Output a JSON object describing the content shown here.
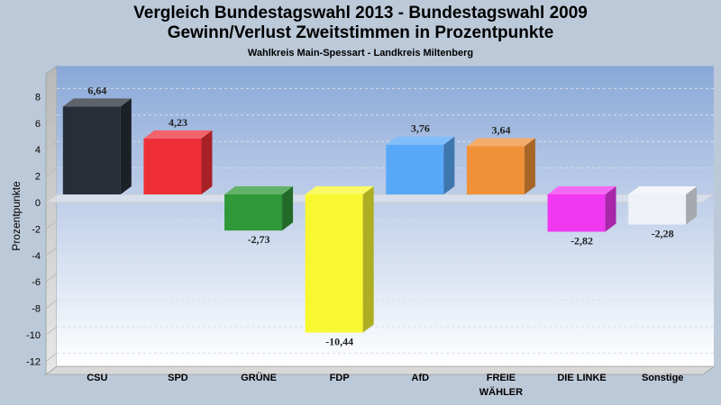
{
  "header": {
    "title_line1": "Vergleich Bundestagswahl 2013 - Bundestagswahl 2009",
    "title_line2": "Gewinn/Verlust Zweitstimmen in Prozentpunkte",
    "subtitle": "Wahlkreis Main-Spessart - Landkreis Miltenberg"
  },
  "chart_data": {
    "type": "bar",
    "title": "Vergleich Bundestagswahl 2013 - Bundestagswahl 2009 / Gewinn/Verlust Zweitstimmen in Prozentpunkte",
    "subtitle": "Wahlkreis Main-Spessart - Landkreis Miltenberg",
    "xlabel": "",
    "ylabel": "Prozentpunkte",
    "ylim": [
      -13,
      9.7
    ],
    "yticks": [
      8,
      6,
      4,
      2,
      0,
      -2,
      -4,
      -6,
      -8,
      -10,
      -12
    ],
    "grid": true,
    "legend": "none",
    "categories": [
      "CSU",
      "SPD",
      "GRÜNE",
      "FDP",
      "AfD",
      "FREIE WÄHLER",
      "DIE LINKE",
      "Sonstige"
    ],
    "category_lines": [
      [
        "CSU"
      ],
      [
        "SPD"
      ],
      [
        "GRÜNE"
      ],
      [
        "FDP"
      ],
      [
        "AfD"
      ],
      [
        "FREIE",
        "WÄHLER"
      ],
      [
        "DIE LINKE"
      ],
      [
        "Sonstige"
      ]
    ],
    "values": [
      6.64,
      4.23,
      -2.73,
      -10.44,
      3.76,
      3.64,
      -2.82,
      -2.28
    ],
    "value_labels": [
      "6,64",
      "4,23",
      "-2,73",
      "-10,44",
      "3,76",
      "3,64",
      "-2,82",
      "-2,28"
    ],
    "colors": [
      "#282d38",
      "#ee2f38",
      "#2f9838",
      "#f8f830",
      "#58a8f8",
      "#f09038",
      "#f038f0",
      "#eef2f8"
    ]
  }
}
